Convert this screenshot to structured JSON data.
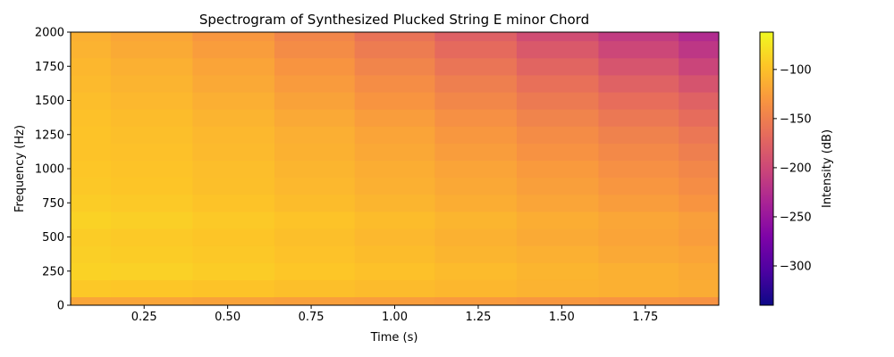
{
  "chart_data": {
    "type": "heatmap",
    "title": "Spectrogram of Synthesized Plucked String E minor Chord",
    "xlabel": "Time (s)",
    "ylabel": "Frequency (Hz)",
    "xlim": [
      0.03,
      1.97
    ],
    "ylim": [
      0,
      2000
    ],
    "x_ticks": [
      0.25,
      0.5,
      0.75,
      1.0,
      1.25,
      1.5,
      1.75
    ],
    "x_tick_labels": [
      "0.25",
      "0.50",
      "0.75",
      "1.00",
      "1.25",
      "1.50",
      "1.75"
    ],
    "y_ticks": [
      0,
      250,
      500,
      750,
      1000,
      1250,
      1500,
      1750,
      2000
    ],
    "y_tick_labels": [
      "0",
      "250",
      "500",
      "750",
      "1000",
      "1250",
      "1500",
      "1750",
      "2000"
    ],
    "colormap": "plasma",
    "colorbar": {
      "label": "Intensity (dB)",
      "range": [
        -340,
        -62
      ],
      "ticks": [
        -100,
        -150,
        -200,
        -250,
        -300
      ],
      "tick_labels": [
        "−100",
        "−150",
        "−200",
        "−250",
        "−300"
      ]
    },
    "time_frames": [
      0.03,
      0.27,
      0.52,
      0.76,
      1.0,
      1.24,
      1.49,
      1.73,
      1.97
    ],
    "frequency_bins": [
      0,
      125,
      250,
      375,
      500,
      625,
      750,
      875,
      1000,
      1125,
      1250,
      1375,
      1500,
      1625,
      1750,
      1875,
      2000
    ],
    "intensity_db": [
      [
        -120,
        -120,
        -122,
        -124,
        -126,
        -128,
        -130,
        -132,
        -134
      ],
      [
        -95,
        -96,
        -98,
        -101,
        -104,
        -107,
        -110,
        -112,
        -115
      ],
      [
        -88,
        -89,
        -92,
        -96,
        -100,
        -104,
        -108,
        -112,
        -116
      ],
      [
        -90,
        -92,
        -95,
        -99,
        -103,
        -108,
        -112,
        -117,
        -121
      ],
      [
        -92,
        -94,
        -97,
        -101,
        -106,
        -111,
        -116,
        -121,
        -126
      ],
      [
        -88,
        -90,
        -94,
        -98,
        -103,
        -108,
        -114,
        -119,
        -124
      ],
      [
        -92,
        -94,
        -98,
        -103,
        -108,
        -114,
        -120,
        -126,
        -132
      ],
      [
        -95,
        -97,
        -101,
        -106,
        -112,
        -118,
        -124,
        -131,
        -138
      ],
      [
        -96,
        -98,
        -102,
        -108,
        -114,
        -121,
        -128,
        -136,
        -143
      ],
      [
        -98,
        -100,
        -105,
        -111,
        -118,
        -126,
        -134,
        -142,
        -150
      ],
      [
        -98,
        -101,
        -106,
        -113,
        -121,
        -130,
        -139,
        -148,
        -157
      ],
      [
        -100,
        -103,
        -109,
        -117,
        -126,
        -136,
        -146,
        -156,
        -166
      ],
      [
        -102,
        -106,
        -113,
        -122,
        -132,
        -143,
        -154,
        -165,
        -176
      ],
      [
        -105,
        -109,
        -117,
        -127,
        -138,
        -150,
        -163,
        -176,
        -189
      ],
      [
        -107,
        -112,
        -121,
        -132,
        -145,
        -159,
        -173,
        -188,
        -203
      ],
      [
        -110,
        -116,
        -126,
        -139,
        -153,
        -168,
        -184,
        -201,
        -216
      ],
      [
        -112,
        -119,
        -130,
        -144,
        -160,
        -177,
        -195,
        -212,
        -228
      ]
    ]
  }
}
